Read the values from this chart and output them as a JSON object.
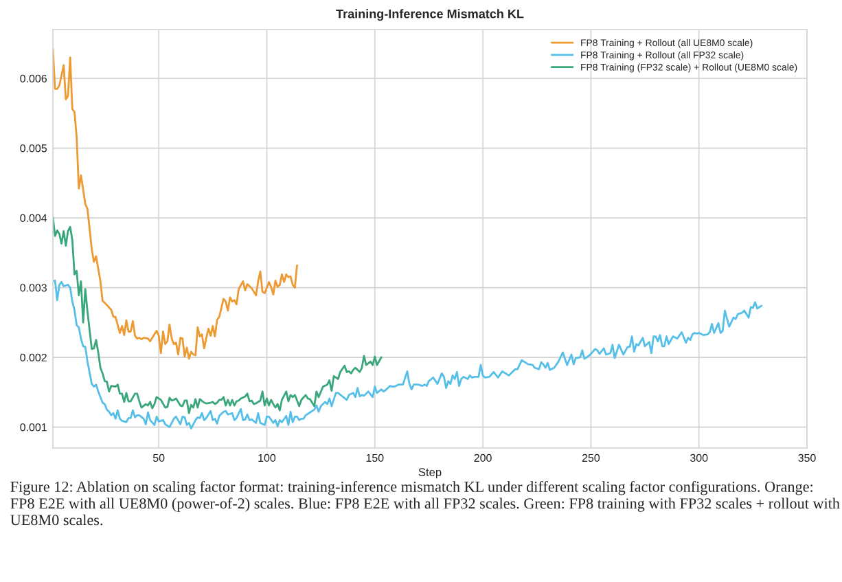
{
  "chart_data": {
    "type": "line",
    "title": "Training-Inference Mismatch KL",
    "xlabel": "Step",
    "xlim": [
      1,
      350
    ],
    "xticks": [
      50,
      100,
      150,
      200,
      250,
      300,
      350
    ],
    "ylim": [
      0.0007,
      0.0067
    ],
    "yticks": [
      0.001,
      0.002,
      0.003,
      0.004,
      0.005,
      0.006
    ],
    "grid": true,
    "legend": "top right",
    "marker": "none",
    "line_style": "solid",
    "annotations": [
      "Figure 12: Ablation on scaling factor format: training-inference mismatch KL under different scaling factor configurations. Orange: FP8 E2E with all UE8M0 (power-of-2) scales. Blue: FP8 E2E with all FP32 scales. Green: FP8 training with FP32 scales + rollout with UE8M0 scales."
    ],
    "series": [
      {
        "name": "FP8 Training + Rollout (all UE8M0 scale)",
        "color": "#ee9a33",
        "x": [
          1,
          2,
          3,
          4,
          6,
          7,
          8,
          9,
          10,
          11,
          12,
          13,
          14,
          16,
          17,
          19,
          20,
          21,
          23,
          24,
          26,
          28,
          29,
          30,
          32,
          33,
          34,
          35,
          36,
          37,
          38,
          39,
          40,
          41,
          42,
          43,
          45,
          46,
          48,
          49,
          50,
          51,
          52,
          53,
          54,
          55,
          56,
          57,
          58,
          59,
          60,
          61,
          62,
          63,
          64,
          65,
          66,
          67,
          68,
          69,
          70,
          71,
          72,
          73,
          74,
          75,
          76,
          77,
          78,
          80,
          81,
          82,
          83,
          84,
          85,
          86,
          87,
          89,
          90,
          91,
          93,
          94,
          95,
          96,
          97,
          98,
          99,
          101,
          102,
          103,
          104,
          105,
          106,
          107,
          108,
          109,
          110,
          111,
          112,
          113,
          114
        ],
        "values": [
          0.00642,
          0.00585,
          0.00585,
          0.0059,
          0.00619,
          0.0057,
          0.00575,
          0.0063,
          0.00556,
          0.00552,
          0.00516,
          0.00442,
          0.00461,
          0.0042,
          0.00413,
          0.00355,
          0.00337,
          0.00345,
          0.00309,
          0.00281,
          0.00275,
          0.00268,
          0.00258,
          0.00258,
          0.00235,
          0.00245,
          0.00232,
          0.00253,
          0.00237,
          0.00237,
          0.00252,
          0.00231,
          0.00227,
          0.00228,
          0.00226,
          0.00228,
          0.00227,
          0.00223,
          0.00233,
          0.00238,
          0.00231,
          0.00206,
          0.00237,
          0.00219,
          0.00223,
          0.00247,
          0.00227,
          0.00219,
          0.00221,
          0.00204,
          0.00228,
          0.00227,
          0.00201,
          0.00214,
          0.00198,
          0.00208,
          0.00204,
          0.00203,
          0.00243,
          0.0023,
          0.00233,
          0.00213,
          0.00228,
          0.00241,
          0.00231,
          0.00245,
          0.0023,
          0.00254,
          0.00258,
          0.00284,
          0.0028,
          0.00267,
          0.00286,
          0.0028,
          0.00282,
          0.00276,
          0.00298,
          0.00309,
          0.00296,
          0.00305,
          0.00299,
          0.00294,
          0.00289,
          0.00309,
          0.00323,
          0.00294,
          0.00292,
          0.00308,
          0.00301,
          0.0029,
          0.0031,
          0.00301,
          0.00304,
          0.00319,
          0.00308,
          0.00319,
          0.00315,
          0.00316,
          0.00304,
          0.003,
          0.00332
        ]
      },
      {
        "name": "FP8 Training + Rollout (all FP32 scale)",
        "color": "#56bfe8",
        "x": [
          1,
          2,
          3,
          4,
          5,
          6,
          8,
          9,
          10,
          11,
          12,
          13,
          14,
          15,
          16,
          17,
          19,
          20,
          21,
          22,
          24,
          25,
          26,
          27,
          28,
          29,
          30,
          31,
          32,
          33,
          35,
          36,
          37,
          38,
          39,
          40,
          41,
          43,
          44,
          45,
          46,
          48,
          49,
          50,
          52,
          53,
          55,
          56,
          57,
          58,
          60,
          61,
          62,
          63,
          64,
          65,
          67,
          68,
          69,
          70,
          71,
          72,
          74,
          75,
          76,
          77,
          78,
          80,
          81,
          82,
          84,
          85,
          86,
          88,
          89,
          90,
          91,
          92,
          93,
          95,
          96,
          97,
          99,
          100,
          101,
          103,
          104,
          105,
          106,
          107,
          109,
          110,
          111,
          112,
          113,
          114,
          115,
          116,
          117,
          118,
          120,
          121,
          122,
          123,
          124,
          125,
          127,
          128,
          129,
          130,
          132,
          133,
          135,
          137,
          138,
          140,
          141,
          142,
          143,
          144,
          145,
          147,
          149,
          150,
          151,
          153,
          154,
          155,
          157,
          158,
          159,
          161,
          163,
          165,
          166,
          167,
          168,
          170,
          172,
          173,
          174,
          175,
          177,
          179,
          181,
          182,
          183,
          184,
          185,
          186,
          187,
          188,
          189,
          190,
          191,
          193,
          194,
          195,
          196,
          198,
          199,
          200,
          201,
          203,
          205,
          207,
          209,
          212,
          214,
          215,
          216,
          218,
          221,
          223,
          224,
          225,
          226,
          227,
          228,
          229,
          230,
          231,
          233,
          235,
          237,
          239,
          241,
          242,
          243,
          245,
          246,
          247,
          249,
          250,
          252,
          253,
          254,
          256,
          257,
          259,
          260,
          261,
          263,
          265,
          267,
          268,
          269,
          270,
          271,
          272,
          274,
          275,
          277,
          278,
          279,
          280,
          281,
          282,
          283,
          284,
          285,
          286,
          288,
          290,
          292,
          294,
          295,
          296,
          297,
          298,
          299,
          300,
          302,
          304,
          305,
          306,
          307,
          309,
          310,
          311,
          312,
          314,
          316,
          317,
          318,
          320,
          321,
          323,
          324,
          325,
          326,
          327,
          329
        ],
        "values": [
          0.00309,
          0.0031,
          0.00282,
          0.00304,
          0.00308,
          0.00302,
          0.00304,
          0.003,
          0.0028,
          0.00268,
          0.00246,
          0.00243,
          0.00227,
          0.00216,
          0.00215,
          0.00194,
          0.00162,
          0.00158,
          0.00161,
          0.00151,
          0.00135,
          0.00133,
          0.00125,
          0.00122,
          0.00117,
          0.0012,
          0.00112,
          0.00124,
          0.00112,
          0.00109,
          0.00107,
          0.00113,
          0.00113,
          0.00124,
          0.00114,
          0.00117,
          0.00117,
          0.00112,
          0.00104,
          0.00121,
          0.0011,
          0.00103,
          0.00115,
          0.00108,
          0.0011,
          0.00104,
          0.001,
          0.00106,
          0.00112,
          0.00115,
          0.00104,
          0.00115,
          0.00114,
          0.00103,
          0.00106,
          0.00098,
          0.0011,
          0.00114,
          0.00113,
          0.0012,
          0.0011,
          0.00113,
          0.00123,
          0.0011,
          0.00112,
          0.00105,
          0.00116,
          0.00122,
          0.00123,
          0.00118,
          0.0012,
          0.0011,
          0.00113,
          0.00126,
          0.0011,
          0.00111,
          0.00118,
          0.0011,
          0.00111,
          0.00106,
          0.0012,
          0.00106,
          0.00103,
          0.00115,
          0.00115,
          0.00106,
          0.0011,
          0.00101,
          0.0011,
          0.00107,
          0.00116,
          0.00103,
          0.00122,
          0.00107,
          0.00115,
          0.00115,
          0.0011,
          0.00112,
          0.00112,
          0.00117,
          0.00121,
          0.00123,
          0.00125,
          0.00131,
          0.00122,
          0.0013,
          0.00136,
          0.00133,
          0.00141,
          0.0013,
          0.00149,
          0.00149,
          0.00144,
          0.00139,
          0.00146,
          0.00149,
          0.00143,
          0.00156,
          0.00144,
          0.00146,
          0.00145,
          0.00151,
          0.00143,
          0.00158,
          0.00149,
          0.00154,
          0.00151,
          0.00153,
          0.00159,
          0.00158,
          0.00158,
          0.00161,
          0.00161,
          0.0018,
          0.00162,
          0.00154,
          0.00161,
          0.00161,
          0.00159,
          0.00161,
          0.00159,
          0.00166,
          0.00171,
          0.00162,
          0.00177,
          0.00172,
          0.00156,
          0.00166,
          0.00162,
          0.00174,
          0.00169,
          0.00179,
          0.00159,
          0.00169,
          0.00172,
          0.00169,
          0.00174,
          0.00171,
          0.00172,
          0.00172,
          0.00189,
          0.00174,
          0.00171,
          0.00172,
          0.00179,
          0.00171,
          0.0018,
          0.00174,
          0.0018,
          0.00183,
          0.00183,
          0.00196,
          0.0019,
          0.00189,
          0.00185,
          0.00184,
          0.00183,
          0.00193,
          0.0019,
          0.00185,
          0.00192,
          0.00182,
          0.00185,
          0.00194,
          0.00207,
          0.00189,
          0.00204,
          0.0019,
          0.00199,
          0.002,
          0.0021,
          0.00198,
          0.00202,
          0.00205,
          0.00212,
          0.0021,
          0.00205,
          0.00213,
          0.00204,
          0.00206,
          0.00218,
          0.00199,
          0.00218,
          0.00204,
          0.00215,
          0.00215,
          0.0023,
          0.00208,
          0.00219,
          0.00217,
          0.00228,
          0.00216,
          0.00222,
          0.00206,
          0.0023,
          0.0023,
          0.00223,
          0.00232,
          0.00216,
          0.00216,
          0.0023,
          0.00219,
          0.0023,
          0.00227,
          0.00236,
          0.00221,
          0.00228,
          0.00225,
          0.00233,
          0.00235,
          0.00234,
          0.00235,
          0.00232,
          0.00233,
          0.00236,
          0.00248,
          0.00235,
          0.00249,
          0.00235,
          0.00238,
          0.00267,
          0.00244,
          0.00257,
          0.00255,
          0.00262,
          0.00264,
          0.00267,
          0.00257,
          0.00272,
          0.00271,
          0.00279,
          0.0027,
          0.00274
        ]
      },
      {
        "name": "FP8 Training (FP32 scale) + Rollout (UE8M0 scale)",
        "color": "#3aa67b",
        "x": [
          1,
          2,
          3,
          4,
          5,
          6,
          7,
          8,
          9,
          10,
          11,
          12,
          13,
          14,
          15,
          16,
          17,
          19,
          20,
          21,
          22,
          23,
          24,
          25,
          26,
          27,
          28,
          30,
          31,
          32,
          33,
          34,
          35,
          36,
          37,
          39,
          40,
          41,
          42,
          44,
          45,
          46,
          47,
          48,
          49,
          50,
          51,
          53,
          54,
          55,
          56,
          57,
          58,
          60,
          61,
          62,
          63,
          64,
          65,
          66,
          67,
          68,
          69,
          71,
          72,
          74,
          75,
          76,
          77,
          78,
          79,
          80,
          81,
          82,
          83,
          84,
          85,
          86,
          87,
          88,
          90,
          91,
          92,
          93,
          94,
          95,
          97,
          98,
          99,
          100,
          101,
          102,
          103,
          104,
          105,
          106,
          107,
          109,
          110,
          111,
          112,
          113,
          115,
          116,
          118,
          119,
          120,
          122,
          123,
          124,
          126,
          128,
          129,
          130,
          131,
          133,
          134,
          136,
          137,
          138,
          139,
          140,
          141,
          143,
          144,
          145,
          146,
          148,
          149,
          150,
          151,
          153
        ],
        "values": [
          0.00401,
          0.00374,
          0.00382,
          0.00377,
          0.00363,
          0.00381,
          0.0036,
          0.00381,
          0.00387,
          0.00368,
          0.00319,
          0.00324,
          0.00289,
          0.00309,
          0.0025,
          0.00298,
          0.00266,
          0.00212,
          0.00213,
          0.00225,
          0.00207,
          0.00185,
          0.00177,
          0.00166,
          0.00165,
          0.00151,
          0.00159,
          0.00158,
          0.00161,
          0.00148,
          0.00148,
          0.00136,
          0.00149,
          0.00137,
          0.00137,
          0.00148,
          0.00148,
          0.00137,
          0.00128,
          0.00133,
          0.00131,
          0.00136,
          0.00127,
          0.00133,
          0.00143,
          0.00141,
          0.00139,
          0.00128,
          0.00129,
          0.00142,
          0.00138,
          0.00139,
          0.00141,
          0.00131,
          0.0013,
          0.00138,
          0.00138,
          0.0012,
          0.00132,
          0.00128,
          0.0014,
          0.00128,
          0.0014,
          0.00135,
          0.00134,
          0.00135,
          0.00136,
          0.00133,
          0.00135,
          0.00139,
          0.00139,
          0.00143,
          0.00131,
          0.00139,
          0.00131,
          0.00139,
          0.00131,
          0.00137,
          0.00138,
          0.00141,
          0.00144,
          0.00148,
          0.00137,
          0.00138,
          0.00133,
          0.00134,
          0.00138,
          0.00151,
          0.00131,
          0.00141,
          0.00131,
          0.00139,
          0.00133,
          0.00128,
          0.00133,
          0.00124,
          0.00139,
          0.00151,
          0.00137,
          0.00146,
          0.00143,
          0.00146,
          0.0013,
          0.00139,
          0.00146,
          0.00141,
          0.0014,
          0.0013,
          0.00151,
          0.00143,
          0.00158,
          0.00161,
          0.00167,
          0.00152,
          0.00173,
          0.00169,
          0.00179,
          0.00188,
          0.00179,
          0.0018,
          0.00177,
          0.00182,
          0.00185,
          0.00179,
          0.00185,
          0.00202,
          0.00189,
          0.00194,
          0.00189,
          0.00201,
          0.00189,
          0.002
        ]
      }
    ]
  }
}
